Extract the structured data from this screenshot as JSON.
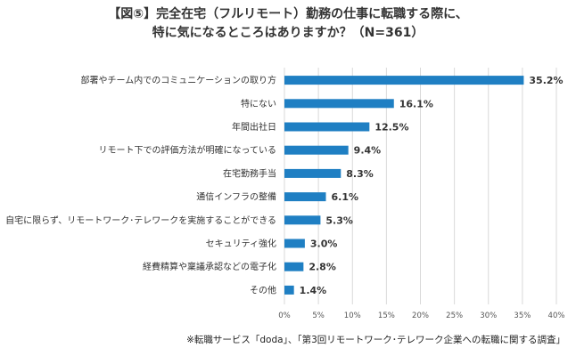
{
  "chart_data": {
    "type": "bar",
    "orientation": "horizontal",
    "title_line1": "【図⑤】完全在宅（フルリモート）勤務の仕事に転職する際に、",
    "title_line2": "特に気になるところはありますか？（N=361）",
    "categories": [
      "部署やチーム内でのコミュニケーションの取り方",
      "特にない",
      "年間出社日",
      "リモート下での評価方法が明確になっている",
      "在宅勤務手当",
      "通信インフラの整備",
      "自宅に限らず、リモートワーク･テレワークを実施することができる",
      "セキュリティ強化",
      "経費精算や稟議承認などの電子化",
      "その他"
    ],
    "values": [
      35.2,
      16.1,
      12.5,
      9.4,
      8.3,
      6.1,
      5.3,
      3.0,
      2.8,
      1.4
    ],
    "value_labels": [
      "35.2%",
      "16.1%",
      "12.5%",
      "9.4%",
      "8.3%",
      "6.1%",
      "5.3%",
      "3.0%",
      "2.8%",
      "1.4%"
    ],
    "xlim": [
      0,
      40
    ],
    "x_ticks": [
      "0%",
      "5%",
      "10%",
      "15%",
      "20%",
      "25%",
      "30%",
      "35%",
      "40%"
    ],
    "grid": true,
    "bar_color": "#1f7fc3",
    "grid_color": "#d9d9d9",
    "source_note": "※転職サービス「doda」、「第3回リモートワーク･テレワーク企業への転職に関する調査」"
  }
}
